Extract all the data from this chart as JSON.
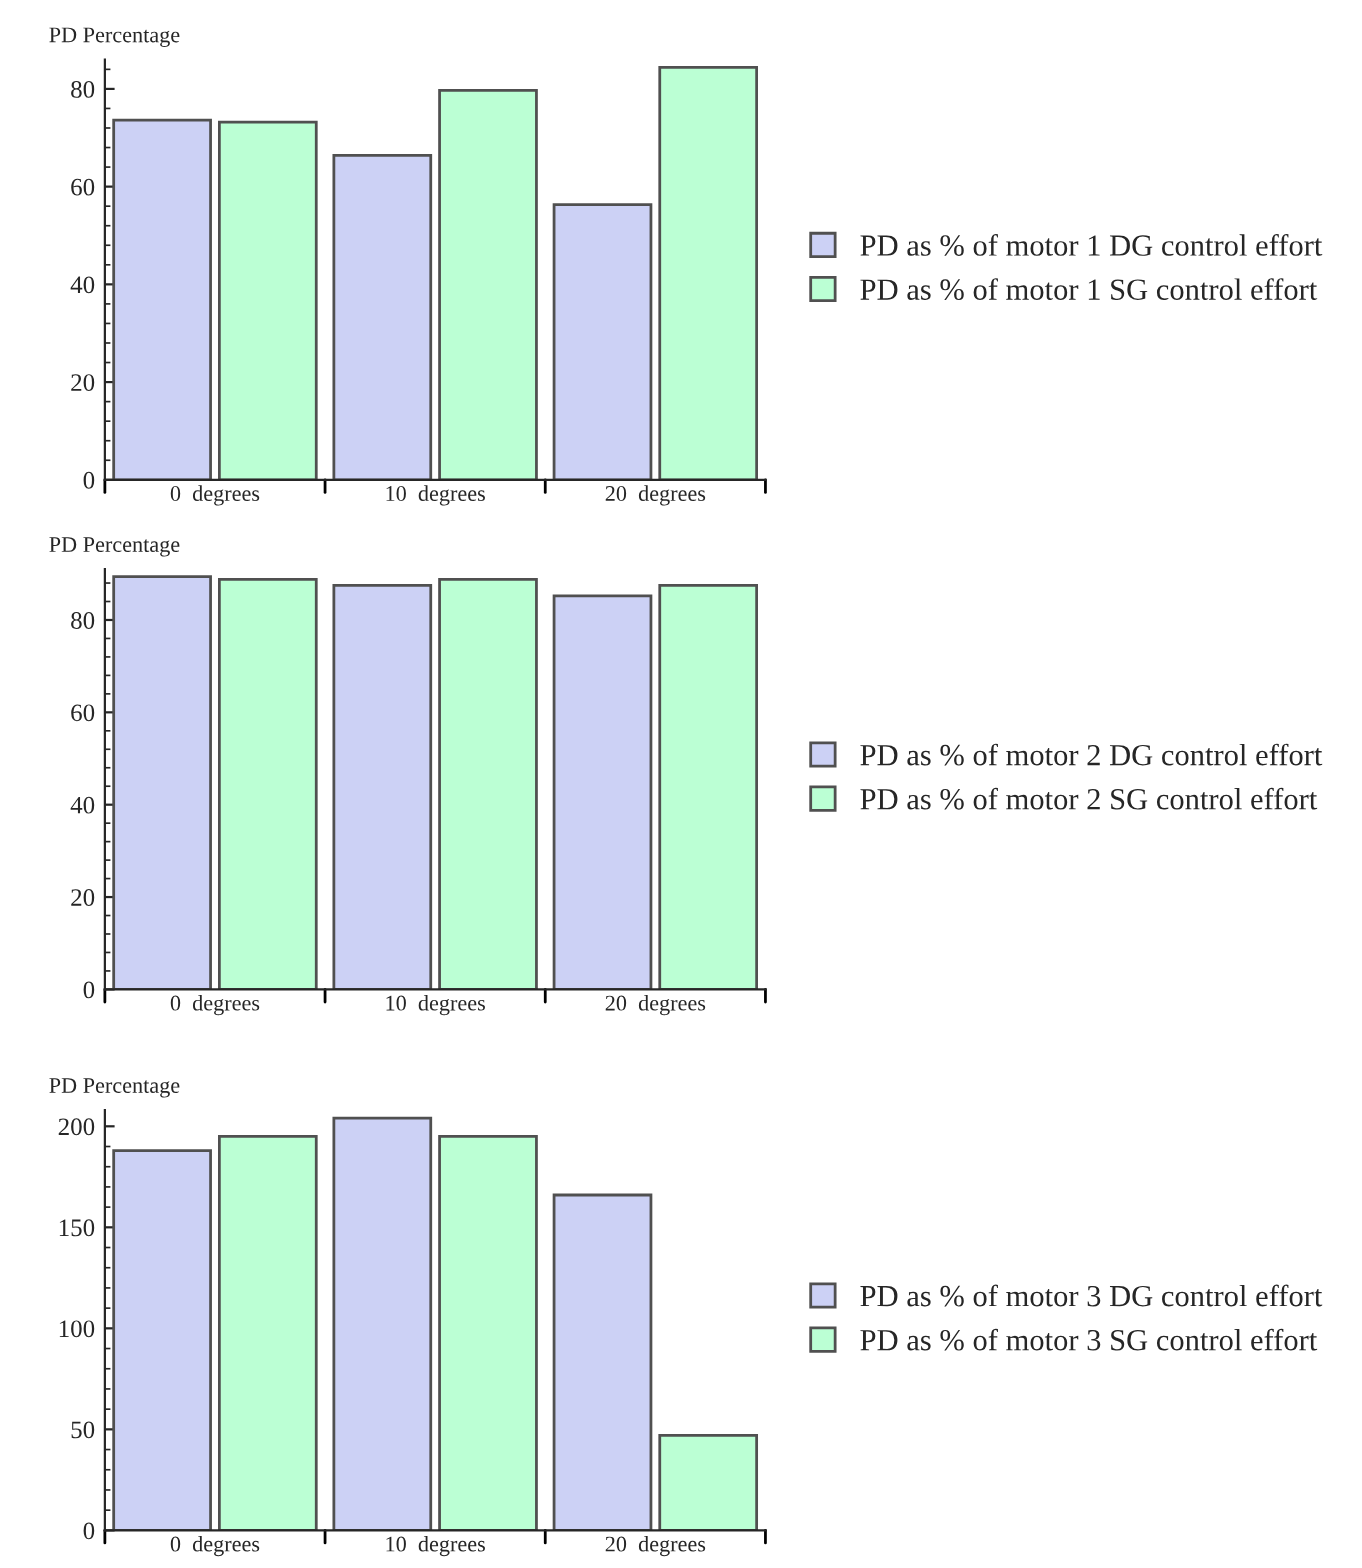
{
  "chart_data": [
    {
      "type": "bar",
      "ylabel": "PD Percentage",
      "categories": [
        "0  degrees",
        "10  degrees",
        "20  degrees"
      ],
      "series": [
        {
          "name": "PD as % of motor 1 DG control effort",
          "color": "#ccd1f5",
          "values": [
            73.6,
            66.4,
            56.3
          ]
        },
        {
          "name": "PD as % of motor 1 SG control effort",
          "color": "#bbffd4",
          "values": [
            73.2,
            79.7,
            84.4
          ]
        }
      ],
      "ylim": [
        0,
        86
      ],
      "yticks": [
        0,
        20,
        40,
        60,
        80
      ],
      "legend": "right",
      "grid": false
    },
    {
      "type": "bar",
      "ylabel": "PD Percentage",
      "categories": [
        "0  degrees",
        "10  degrees",
        "20  degrees"
      ],
      "series": [
        {
          "name": "PD as % of motor 2 DG control effort",
          "color": "#ccd1f5",
          "values": [
            89.4,
            87.5,
            85.2
          ]
        },
        {
          "name": "PD as % of motor 2 SG control effort",
          "color": "#bbffd4",
          "values": [
            88.8,
            88.8,
            87.5
          ]
        }
      ],
      "ylim": [
        0,
        91
      ],
      "yticks": [
        0,
        20,
        40,
        60,
        80
      ],
      "legend": "right",
      "grid": false
    },
    {
      "type": "bar",
      "ylabel": "PD Percentage",
      "categories": [
        "0  degrees",
        "10  degrees",
        "20  degrees"
      ],
      "series": [
        {
          "name": "PD as % of motor 3 DG control effort",
          "color": "#ccd1f5",
          "values": [
            188,
            204,
            166
          ]
        },
        {
          "name": "PD as % of motor 3 SG control effort",
          "color": "#bbffd4",
          "values": [
            195,
            195,
            47
          ]
        }
      ],
      "ylim": [
        0,
        208
      ],
      "yticks": [
        0,
        50,
        100,
        150,
        200
      ],
      "legend": "right",
      "grid": false
    }
  ]
}
